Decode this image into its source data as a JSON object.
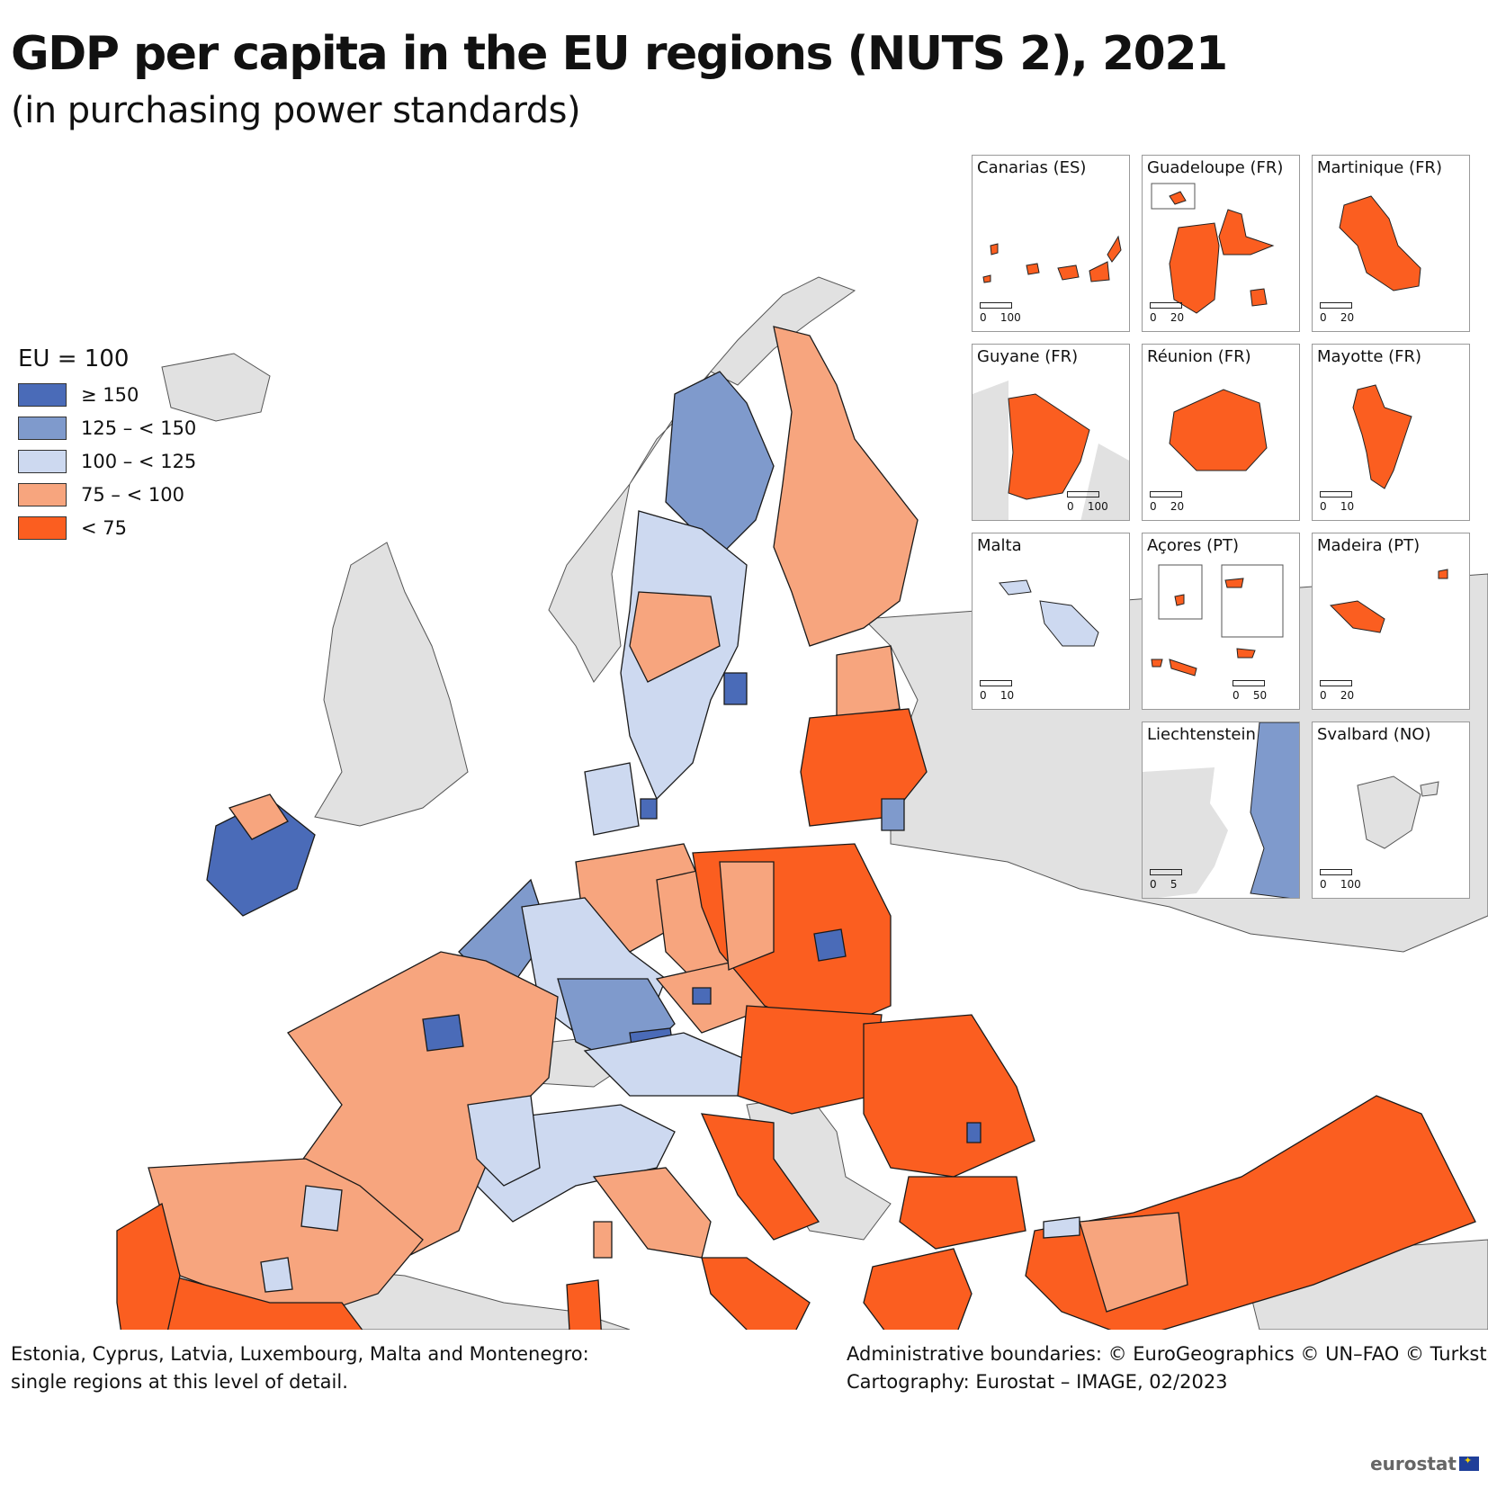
{
  "title": "GDP per capita in the EU regions (NUTS 2), 2021",
  "subtitle": "(in purchasing power standards)",
  "legend": {
    "title": "EU = 100",
    "classes": [
      {
        "label": "≥ 150",
        "color": "#4a6bb8"
      },
      {
        "label": "125 – < 150",
        "color": "#7f9acc"
      },
      {
        "label": "100 – < 125",
        "color": "#cdd9f0"
      },
      {
        "label": "75 – < 100",
        "color": "#f7a57e"
      },
      {
        "label": "< 75",
        "color": "#fb5e20"
      }
    ]
  },
  "colors": {
    "non_eu": "#e1e1e1",
    "sea": "#ffffff",
    "border": "#1a1a1a"
  },
  "insets": [
    {
      "name": "Canarias (ES)",
      "scale": [
        "0",
        "100"
      ]
    },
    {
      "name": "Guadeloupe (FR)",
      "scale": [
        "0",
        "20"
      ]
    },
    {
      "name": "Martinique (FR)",
      "scale": [
        "0",
        "20"
      ]
    },
    {
      "name": "Guyane (FR)",
      "scale": [
        "0",
        "100"
      ]
    },
    {
      "name": "Réunion (FR)",
      "scale": [
        "0",
        "20"
      ]
    },
    {
      "name": "Mayotte (FR)",
      "scale": [
        "0",
        "10"
      ]
    },
    {
      "name": "Malta",
      "scale": [
        "0",
        "10"
      ]
    },
    {
      "name": "Açores (PT)",
      "scale": [
        "0",
        "50"
      ]
    },
    {
      "name": "Madeira (PT)",
      "scale": [
        "0",
        "20"
      ]
    },
    {
      "name": "Liechtenstein",
      "scale": [
        "0",
        "5"
      ]
    },
    {
      "name": "Svalbard (NO)",
      "scale": [
        "0",
        "100"
      ]
    }
  ],
  "footnote": {
    "line1": "Estonia, Cyprus, Latvia, Luxembourg, Malta and Montenegro:",
    "line2": "single regions at this level of detail."
  },
  "credits": {
    "line1": "Administrative boundaries: © EuroGeographics © UN–FAO © Turkstat",
    "line2": "Cartography: Eurostat – IMAGE, 02/2023"
  },
  "logo": "eurostat"
}
